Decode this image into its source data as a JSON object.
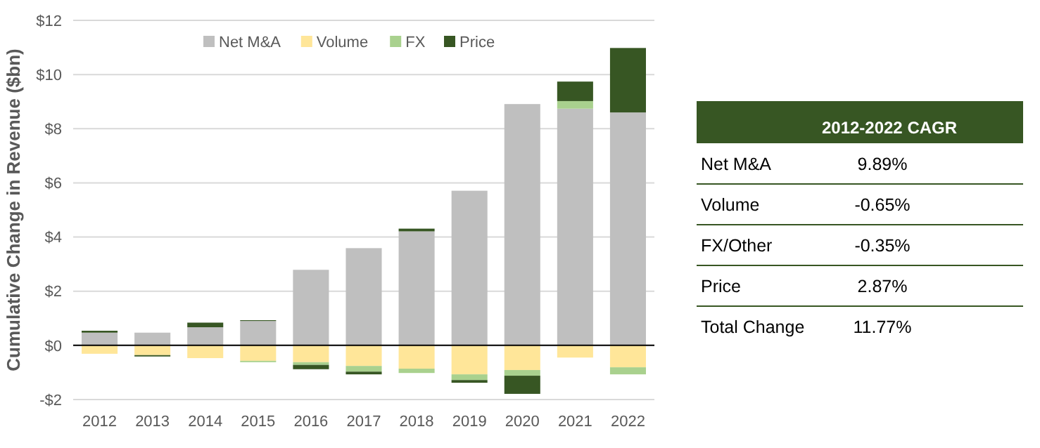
{
  "chart_data": [
    {
      "type": "bar",
      "stacked": true,
      "ylabel": "Cumulative Change in Revenue ($bn)",
      "categories": [
        "2012",
        "2013",
        "2014",
        "2015",
        "2016",
        "2017",
        "2018",
        "2019",
        "2020",
        "2021",
        "2022"
      ],
      "series": [
        {
          "name": "Net M&A",
          "color": "#bfbfbf",
          "values": [
            0.47,
            0.47,
            0.67,
            0.9,
            2.79,
            3.59,
            4.21,
            5.71,
            8.91,
            8.74,
            8.6
          ]
        },
        {
          "name": "Volume",
          "color": "#ffe699",
          "values": [
            -0.31,
            -0.36,
            -0.47,
            -0.57,
            -0.62,
            -0.76,
            -0.86,
            -1.07,
            -0.91,
            -0.45,
            -0.81
          ]
        },
        {
          "name": "FX",
          "color": "#a9d18e",
          "values": [
            null,
            null,
            null,
            -0.05,
            -0.1,
            -0.21,
            -0.16,
            -0.21,
            -0.21,
            0.28,
            -0.26
          ]
        },
        {
          "name": "Price",
          "color": "#375623",
          "values": [
            0.07,
            -0.05,
            0.17,
            0.03,
            -0.16,
            -0.1,
            0.1,
            -0.1,
            -0.67,
            0.72,
            2.38
          ]
        }
      ],
      "ylim": [
        -2,
        12
      ],
      "yticks": [
        {
          "value": -2,
          "label": "-$2"
        },
        {
          "value": 0,
          "label": "$0"
        },
        {
          "value": 2,
          "label": "$2"
        },
        {
          "value": 4,
          "label": "$4"
        },
        {
          "value": 6,
          "label": "$6"
        },
        {
          "value": 8,
          "label": "$8"
        },
        {
          "value": 10,
          "label": "$10"
        },
        {
          "value": 12,
          "label": "$12"
        }
      ],
      "grid": "y",
      "legend": "top"
    },
    {
      "type": "other",
      "title": "2012-2022 CAGR",
      "color": "#375623",
      "categories": [
        "Net M&A",
        "Volume",
        "FX/Other",
        "Price",
        "Total Change"
      ],
      "value_labels": [
        "9.89%",
        "-0.65%",
        "-0.35%",
        "2.87%",
        "11.77%"
      ]
    }
  ]
}
